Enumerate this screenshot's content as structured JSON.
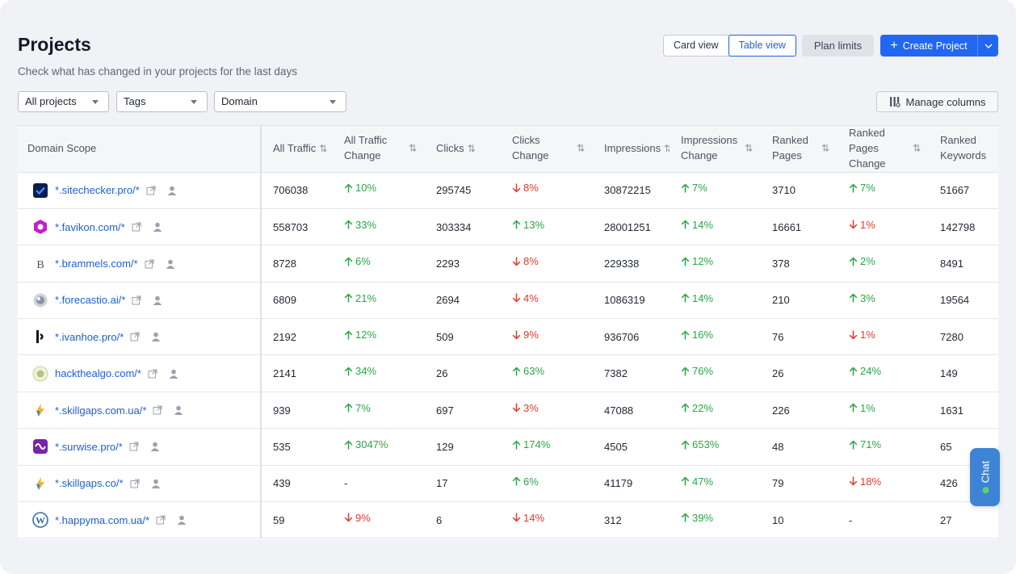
{
  "page": {
    "title": "Projects",
    "subtitle": "Check what has changed in your projects for the last days"
  },
  "toolbar": {
    "card_view": "Card view",
    "table_view": "Table view",
    "plan_limits": "Plan limits",
    "create_project": "Create Project",
    "manage_columns": "Manage columns"
  },
  "filters": {
    "projects": "All projects",
    "tags": "Tags",
    "domain": "Domain"
  },
  "table": {
    "headers": {
      "domain": "Domain Scope",
      "all_traffic": "All Traffic",
      "all_traffic_change": "All Traffic Change",
      "clicks": "Clicks",
      "clicks_change": "Clicks Change",
      "impressions": "Impressions",
      "impressions_change": "Impressions Change",
      "ranked_pages": "Ranked Pages",
      "ranked_pages_change": "Ranked Pages Change",
      "ranked_keywords": "Ranked Keywords"
    },
    "rows": [
      {
        "domain": "*.sitechecker.pro/*",
        "icon": "sitechecker-icon",
        "traffic": "706038",
        "traffic_chg": "10%",
        "traffic_dir": "up",
        "clicks": "295745",
        "clicks_chg": "8%",
        "clicks_dir": "down",
        "impr": "30872215",
        "impr_chg": "7%",
        "impr_dir": "up",
        "pages": "3710",
        "pages_chg": "7%",
        "pages_dir": "up",
        "keywords": "51667"
      },
      {
        "domain": "*.favikon.com/*",
        "icon": "favikon-icon",
        "traffic": "558703",
        "traffic_chg": "33%",
        "traffic_dir": "up",
        "clicks": "303334",
        "clicks_chg": "13%",
        "clicks_dir": "up",
        "impr": "28001251",
        "impr_chg": "14%",
        "impr_dir": "up",
        "pages": "16661",
        "pages_chg": "1%",
        "pages_dir": "down",
        "keywords": "142798"
      },
      {
        "domain": "*.brammels.com/*",
        "icon": "brammels-icon",
        "traffic": "8728",
        "traffic_chg": "6%",
        "traffic_dir": "up",
        "clicks": "2293",
        "clicks_chg": "8%",
        "clicks_dir": "down",
        "impr": "229338",
        "impr_chg": "12%",
        "impr_dir": "up",
        "pages": "378",
        "pages_chg": "2%",
        "pages_dir": "up",
        "keywords": "8491"
      },
      {
        "domain": "*.forecastio.ai/*",
        "icon": "forecastio-icon",
        "traffic": "6809",
        "traffic_chg": "21%",
        "traffic_dir": "up",
        "clicks": "2694",
        "clicks_chg": "4%",
        "clicks_dir": "down",
        "impr": "1086319",
        "impr_chg": "14%",
        "impr_dir": "up",
        "pages": "210",
        "pages_chg": "3%",
        "pages_dir": "up",
        "keywords": "19564"
      },
      {
        "domain": "*.ivanhoe.pro/*",
        "icon": "ivanhoe-icon",
        "traffic": "2192",
        "traffic_chg": "12%",
        "traffic_dir": "up",
        "clicks": "509",
        "clicks_chg": "9%",
        "clicks_dir": "down",
        "impr": "936706",
        "impr_chg": "16%",
        "impr_dir": "up",
        "pages": "76",
        "pages_chg": "1%",
        "pages_dir": "down",
        "keywords": "7280"
      },
      {
        "domain": "hackthealgo.com/*",
        "icon": "hackthealgo-icon",
        "traffic": "2141",
        "traffic_chg": "34%",
        "traffic_dir": "up",
        "clicks": "26",
        "clicks_chg": "63%",
        "clicks_dir": "up",
        "impr": "7382",
        "impr_chg": "76%",
        "impr_dir": "up",
        "pages": "26",
        "pages_chg": "24%",
        "pages_dir": "up",
        "keywords": "149"
      },
      {
        "domain": "*.skillgaps.com.ua/*",
        "icon": "skillgaps-icon",
        "traffic": "939",
        "traffic_chg": "7%",
        "traffic_dir": "up",
        "clicks": "697",
        "clicks_chg": "3%",
        "clicks_dir": "down",
        "impr": "47088",
        "impr_chg": "22%",
        "impr_dir": "up",
        "pages": "226",
        "pages_chg": "1%",
        "pages_dir": "up",
        "keywords": "1631"
      },
      {
        "domain": "*.surwise.pro/*",
        "icon": "surwise-icon",
        "traffic": "535",
        "traffic_chg": "3047%",
        "traffic_dir": "up",
        "clicks": "129",
        "clicks_chg": "174%",
        "clicks_dir": "up",
        "impr": "4505",
        "impr_chg": "653%",
        "impr_dir": "up",
        "pages": "48",
        "pages_chg": "71%",
        "pages_dir": "up",
        "keywords": "65"
      },
      {
        "domain": "*.skillgaps.co/*",
        "icon": "skillgaps-icon",
        "traffic": "439",
        "traffic_chg": "-",
        "traffic_dir": "none",
        "clicks": "17",
        "clicks_chg": "6%",
        "clicks_dir": "up",
        "impr": "41179",
        "impr_chg": "47%",
        "impr_dir": "up",
        "pages": "79",
        "pages_chg": "18%",
        "pages_dir": "down",
        "keywords": "426"
      },
      {
        "domain": "*.happyma.com.ua/*",
        "icon": "wordpress-icon",
        "traffic": "59",
        "traffic_chg": "9%",
        "traffic_dir": "down",
        "clicks": "6",
        "clicks_chg": "14%",
        "clicks_dir": "down",
        "impr": "312",
        "impr_chg": "39%",
        "impr_dir": "up",
        "pages": "10",
        "pages_chg": "-",
        "pages_dir": "none",
        "keywords": "27"
      }
    ]
  },
  "chat": {
    "label": "Chat"
  },
  "colors": {
    "accent": "#2167f2",
    "up": "#28a745",
    "down": "#e03b2c",
    "link": "#1d5fd6"
  }
}
